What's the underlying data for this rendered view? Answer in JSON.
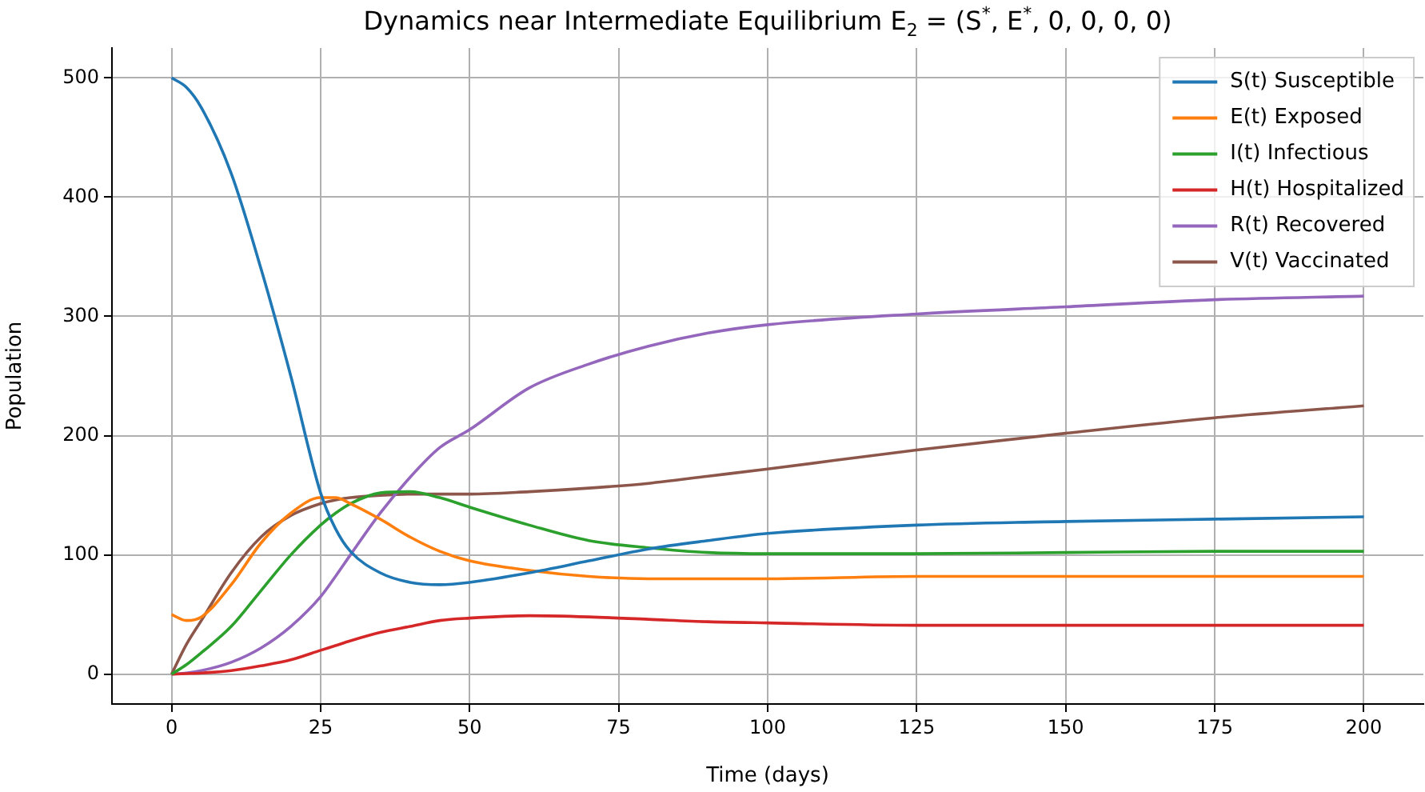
{
  "chart_data": {
    "type": "line",
    "title": "Dynamics near Intermediate Equilibrium E$_{2}$ = (S$^{*}$, E$^{*}$, 0, 0, 0, 0)",
    "xlabel": "Time (days)",
    "ylabel": "Population",
    "x": [
      0,
      2.5,
      5,
      10,
      15,
      20,
      25,
      27.5,
      30,
      35,
      40,
      45,
      50,
      60,
      70,
      80,
      90,
      100,
      125,
      150,
      175,
      200
    ],
    "series": [
      {
        "name": "S(t) Susceptible",
        "color": "#1f77b4",
        "values": [
          500,
          492,
          475,
          420,
          340,
          250,
          152,
          122,
          103,
          85,
          77,
          75,
          77,
          85,
          95,
          105,
          112,
          118,
          125,
          128,
          130,
          132
        ]
      },
      {
        "name": "E(t) Exposed",
        "color": "#ff7f0e",
        "values": [
          50,
          45,
          48,
          75,
          110,
          135,
          148,
          148,
          143,
          130,
          115,
          103,
          95,
          87,
          82,
          80,
          80,
          80,
          82,
          82,
          82,
          82
        ]
      },
      {
        "name": "I(t) Infectious",
        "color": "#2ca02c",
        "values": [
          0,
          8,
          18,
          40,
          70,
          100,
          125,
          135,
          143,
          152,
          153,
          148,
          140,
          125,
          112,
          106,
          102,
          101,
          101,
          102,
          103,
          103
        ]
      },
      {
        "name": "H(t) Hospitalized",
        "color": "#d62728",
        "values": [
          0,
          0.5,
          1,
          3,
          7,
          12,
          20,
          24,
          28,
          35,
          40,
          45,
          47,
          49,
          48,
          46,
          44,
          43,
          41,
          41,
          41,
          41
        ]
      },
      {
        "name": "R(t) Recovered",
        "color": "#9467bd",
        "values": [
          0,
          1,
          3,
          10,
          22,
          40,
          65,
          82,
          100,
          135,
          165,
          190,
          205,
          240,
          260,
          275,
          286,
          293,
          302,
          308,
          314,
          317
        ]
      },
      {
        "name": "V(t) Vaccinated",
        "color": "#8c564b",
        "values": [
          0,
          25,
          45,
          85,
          115,
          133,
          143,
          146,
          148,
          150,
          151,
          151,
          151,
          153,
          156,
          160,
          166,
          172,
          188,
          202,
          215,
          225
        ]
      }
    ],
    "xlim": [
      -10,
      210
    ],
    "xticks": [
      0,
      25,
      50,
      75,
      100,
      125,
      150,
      175,
      200
    ],
    "ylim": [
      -25,
      525
    ],
    "yticks": [
      0,
      100,
      200,
      300,
      400,
      500
    ],
    "grid": true,
    "legend": "top right",
    "marker": "none",
    "line_style": "solid"
  }
}
